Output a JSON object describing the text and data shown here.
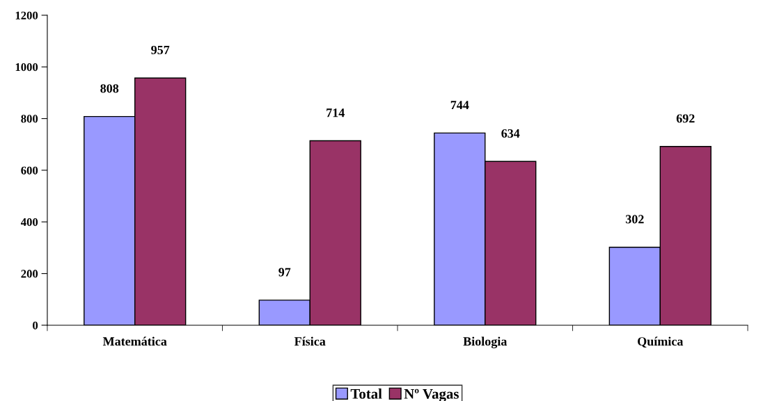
{
  "chart_data": {
    "type": "bar",
    "categories": [
      "Matemática",
      "Física",
      "Biologia",
      "Química"
    ],
    "series": [
      {
        "name": "Total",
        "color": "#9999ff",
        "values": [
          808,
          97,
          744,
          302
        ]
      },
      {
        "name": "Nº Vagas",
        "color": "#993366",
        "values": [
          957,
          714,
          634,
          692
        ]
      }
    ],
    "ylim": [
      0,
      1200
    ],
    "yticks": [
      0,
      200,
      400,
      600,
      800,
      1000,
      1200
    ],
    "data_labels": true,
    "grid": false,
    "legend": "bottom"
  }
}
